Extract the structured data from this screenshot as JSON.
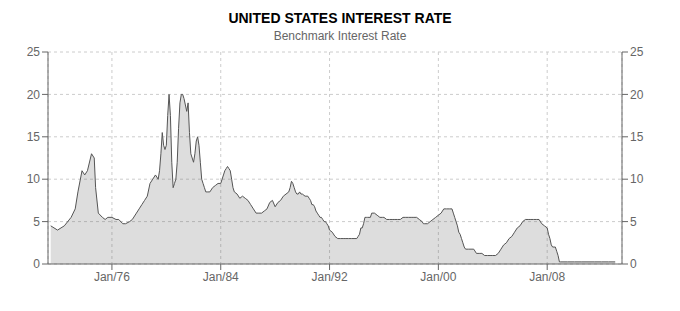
{
  "chart_data": {
    "type": "area",
    "title": "UNITED STATES INTEREST RATE",
    "subtitle": "Benchmark Interest Rate",
    "color": "#555555",
    "grid": true,
    "xlim": [
      1971.3,
      2013.5
    ],
    "xticks": [
      {
        "value": 1976,
        "label": "Jan/76"
      },
      {
        "value": 1984,
        "label": "Jan/84"
      },
      {
        "value": 1992,
        "label": "Jan/92"
      },
      {
        "value": 2000,
        "label": "Jan/00"
      },
      {
        "value": 2008,
        "label": "Jan/08"
      }
    ],
    "ylim": [
      0,
      25
    ],
    "yticks": [
      0,
      5,
      10,
      15,
      20,
      25
    ],
    "y2lim": [
      0,
      25
    ],
    "y2ticks": [
      0,
      5,
      10,
      15,
      20,
      25
    ],
    "x": [
      1971.5,
      1972.0,
      1972.5,
      1973.0,
      1973.3,
      1973.5,
      1973.8,
      1974.0,
      1974.2,
      1974.5,
      1974.7,
      1974.8,
      1975.0,
      1975.3,
      1975.5,
      1975.7,
      1976.0,
      1976.3,
      1976.5,
      1976.8,
      1977.0,
      1977.3,
      1977.5,
      1977.8,
      1978.0,
      1978.2,
      1978.4,
      1978.6,
      1978.8,
      1979.0,
      1979.2,
      1979.4,
      1979.5,
      1979.6,
      1979.7,
      1979.8,
      1979.9,
      1980.0,
      1980.1,
      1980.2,
      1980.3,
      1980.4,
      1980.5,
      1980.6,
      1980.7,
      1980.8,
      1980.9,
      1981.0,
      1981.1,
      1981.2,
      1981.3,
      1981.5,
      1981.6,
      1981.7,
      1981.8,
      1981.9,
      1982.0,
      1982.1,
      1982.2,
      1982.3,
      1982.4,
      1982.5,
      1982.6,
      1982.7,
      1982.8,
      1982.9,
      1983.0,
      1983.2,
      1983.4,
      1983.6,
      1983.8,
      1984.0,
      1984.1,
      1984.2,
      1984.3,
      1984.4,
      1984.5,
      1984.6,
      1984.7,
      1984.8,
      1984.9,
      1985.0,
      1985.2,
      1985.4,
      1985.6,
      1985.8,
      1986.0,
      1986.2,
      1986.4,
      1986.6,
      1986.8,
      1987.0,
      1987.2,
      1987.4,
      1987.6,
      1987.8,
      1988.0,
      1988.2,
      1988.4,
      1988.6,
      1988.8,
      1989.0,
      1989.1,
      1989.2,
      1989.3,
      1989.4,
      1989.5,
      1989.6,
      1989.7,
      1989.8,
      1989.9,
      1990.0,
      1990.2,
      1990.4,
      1990.5,
      1990.6,
      1990.7,
      1990.8,
      1990.9,
      1991.0,
      1991.1,
      1991.2,
      1991.3,
      1991.4,
      1991.5,
      1991.6,
      1991.7,
      1991.8,
      1991.9,
      1992.0,
      1992.2,
      1992.4,
      1992.6,
      1992.8,
      1993.0,
      1993.2,
      1993.4,
      1993.6,
      1993.8,
      1994.0,
      1994.1,
      1994.2,
      1994.3,
      1994.4,
      1994.5,
      1994.6,
      1994.7,
      1994.8,
      1994.9,
      1995.0,
      1995.1,
      1995.3,
      1995.5,
      1995.7,
      1995.9,
      1996.0,
      1996.2,
      1996.4,
      1996.6,
      1996.8,
      1997.0,
      1997.2,
      1997.4,
      1997.6,
      1997.8,
      1998.0,
      1998.2,
      1998.4,
      1998.6,
      1998.8,
      1998.9,
      1999.0,
      1999.2,
      1999.4,
      1999.6,
      1999.8,
      2000.0,
      2000.2,
      2000.4,
      2000.6,
      2000.8,
      2001.0,
      2001.1,
      2001.2,
      2001.3,
      2001.4,
      2001.5,
      2001.6,
      2001.7,
      2001.8,
      2001.9,
      2002.0,
      2002.2,
      2002.4,
      2002.6,
      2002.8,
      2003.0,
      2003.2,
      2003.4,
      2003.6,
      2003.8,
      2004.0,
      2004.2,
      2004.4,
      2004.6,
      2004.8,
      2005.0,
      2005.2,
      2005.4,
      2005.6,
      2005.8,
      2006.0,
      2006.2,
      2006.4,
      2006.6,
      2006.8,
      2007.0,
      2007.2,
      2007.4,
      2007.6,
      2007.8,
      2008.0,
      2008.1,
      2008.2,
      2008.3,
      2008.4,
      2008.5,
      2008.6,
      2008.7,
      2008.8,
      2008.9,
      2009.0,
      2009.5,
      2010.0,
      2010.5,
      2011.0,
      2011.5,
      2012.0,
      2012.5,
      2013.0
    ],
    "values": [
      4.5,
      4.0,
      4.5,
      5.5,
      6.5,
      8.5,
      11.0,
      10.5,
      11.0,
      13.0,
      12.5,
      9.0,
      6.0,
      5.5,
      5.25,
      5.5,
      5.5,
      5.25,
      5.25,
      4.75,
      4.75,
      5.0,
      5.25,
      6.0,
      6.5,
      7.0,
      7.5,
      8.0,
      9.5,
      10.0,
      10.5,
      10.0,
      11.0,
      13.0,
      15.5,
      14.0,
      13.5,
      14.0,
      17.5,
      20.0,
      17.5,
      12.0,
      9.0,
      9.5,
      10.0,
      12.0,
      16.0,
      19.0,
      20.0,
      20.0,
      19.5,
      18.0,
      19.0,
      15.5,
      13.0,
      12.5,
      12.0,
      13.0,
      14.5,
      15.0,
      14.0,
      12.0,
      10.0,
      9.5,
      9.0,
      8.5,
      8.5,
      8.5,
      9.0,
      9.25,
      9.5,
      9.5,
      10.0,
      10.5,
      11.0,
      11.25,
      11.5,
      11.25,
      11.0,
      10.0,
      9.0,
      8.5,
      8.25,
      7.75,
      8.0,
      7.75,
      7.5,
      7.0,
      6.5,
      6.0,
      6.0,
      6.0,
      6.25,
      6.5,
      7.25,
      7.5,
      6.75,
      7.25,
      7.5,
      8.0,
      8.25,
      8.5,
      9.0,
      9.75,
      9.5,
      9.0,
      8.5,
      8.25,
      8.25,
      8.5,
      8.25,
      8.25,
      8.0,
      8.0,
      7.75,
      7.5,
      7.0,
      7.0,
      6.75,
      6.25,
      6.0,
      5.75,
      5.5,
      5.5,
      5.25,
      5.0,
      5.0,
      4.75,
      4.5,
      4.0,
      3.75,
      3.25,
      3.0,
      3.0,
      3.0,
      3.0,
      3.0,
      3.0,
      3.0,
      3.0,
      3.25,
      3.5,
      4.25,
      4.25,
      4.75,
      5.5,
      5.5,
      5.5,
      5.5,
      5.5,
      6.0,
      6.0,
      5.75,
      5.5,
      5.5,
      5.5,
      5.25,
      5.25,
      5.25,
      5.25,
      5.25,
      5.25,
      5.5,
      5.5,
      5.5,
      5.5,
      5.5,
      5.5,
      5.25,
      5.0,
      4.75,
      4.75,
      4.75,
      5.0,
      5.25,
      5.5,
      5.75,
      6.0,
      6.5,
      6.5,
      6.5,
      6.5,
      6.0,
      5.5,
      5.0,
      4.5,
      3.75,
      3.5,
      3.0,
      2.5,
      2.0,
      1.75,
      1.75,
      1.75,
      1.75,
      1.25,
      1.25,
      1.25,
      1.0,
      1.0,
      1.0,
      1.0,
      1.0,
      1.25,
      1.75,
      2.25,
      2.5,
      3.0,
      3.25,
      3.75,
      4.25,
      4.5,
      5.0,
      5.25,
      5.25,
      5.25,
      5.25,
      5.25,
      5.25,
      4.75,
      4.5,
      4.25,
      3.5,
      3.0,
      2.25,
      2.0,
      2.0,
      2.0,
      1.5,
      1.0,
      0.25,
      0.25,
      0.25,
      0.25,
      0.25,
      0.25,
      0.25,
      0.25,
      0.25,
      0.25
    ]
  }
}
